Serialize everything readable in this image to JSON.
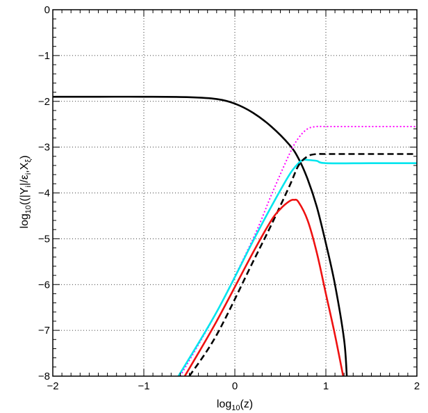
{
  "chart_data": {
    "type": "line",
    "xlabel": "log10(z)",
    "ylabel": "log10((|Yi|/εi,Xξ)",
    "xlim": [
      -2,
      2
    ],
    "ylim": [
      -8,
      0
    ],
    "x_ticks": [
      -2,
      -1,
      0,
      1,
      2
    ],
    "y_ticks": [
      0,
      -1,
      -2,
      -3,
      -4,
      -5,
      -6,
      -7,
      -8
    ],
    "x_tick_labels": [
      "−2",
      "−1",
      "0",
      "1",
      "2"
    ],
    "y_tick_labels": [
      "0",
      "−1",
      "−2",
      "−3",
      "−4",
      "−5",
      "−6",
      "−7",
      "−8"
    ],
    "grid": true,
    "series": [
      {
        "color": "#000000",
        "style": "solid",
        "x": [
          -2,
          -1.5,
          -1,
          -0.5,
          -0.2,
          0,
          0.2,
          0.4,
          0.6,
          0.7,
          0.8,
          0.9,
          1.0,
          1.1,
          1.2,
          1.23
        ],
        "y": [
          -1.9,
          -1.9,
          -1.9,
          -1.91,
          -1.95,
          -2.05,
          -2.25,
          -2.55,
          -2.95,
          -3.25,
          -3.7,
          -4.3,
          -5.1,
          -6.0,
          -7.2,
          -8.0
        ]
      },
      {
        "color": "#ff00ff",
        "style": "dotted",
        "x": [
          -0.6,
          -0.2,
          0.2,
          0.4,
          0.6,
          0.7,
          0.8,
          0.9,
          1.0,
          1.5,
          2.0
        ],
        "y": [
          -8.0,
          -6.6,
          -5.0,
          -4.05,
          -3.15,
          -2.8,
          -2.6,
          -2.55,
          -2.55,
          -2.55,
          -2.55
        ]
      },
      {
        "color": "#00e5ee",
        "style": "solid",
        "x": [
          -0.62,
          -0.2,
          0.2,
          0.4,
          0.6,
          0.7,
          0.75,
          0.8,
          0.9,
          1.0,
          1.5,
          2.0
        ],
        "y": [
          -8.0,
          -6.6,
          -5.05,
          -4.3,
          -3.6,
          -3.35,
          -3.28,
          -3.28,
          -3.3,
          -3.35,
          -3.35,
          -3.35
        ]
      },
      {
        "color": "#000000",
        "style": "dashed",
        "x": [
          -0.5,
          -0.2,
          0.2,
          0.4,
          0.6,
          0.7,
          0.8,
          0.9,
          1.0,
          1.5,
          2.0
        ],
        "y": [
          -8.0,
          -7.1,
          -5.5,
          -4.7,
          -3.85,
          -3.4,
          -3.2,
          -3.15,
          -3.15,
          -3.15,
          -3.15
        ]
      },
      {
        "color": "#ee1111",
        "style": "solid",
        "x": [
          -0.55,
          -0.2,
          0.2,
          0.4,
          0.5,
          0.6,
          0.65,
          0.7,
          0.8,
          0.9,
          1.0,
          1.1,
          1.2
        ],
        "y": [
          -8.0,
          -6.8,
          -5.3,
          -4.6,
          -4.35,
          -4.18,
          -4.15,
          -4.2,
          -4.6,
          -5.3,
          -6.2,
          -7.1,
          -8.1
        ]
      }
    ]
  }
}
